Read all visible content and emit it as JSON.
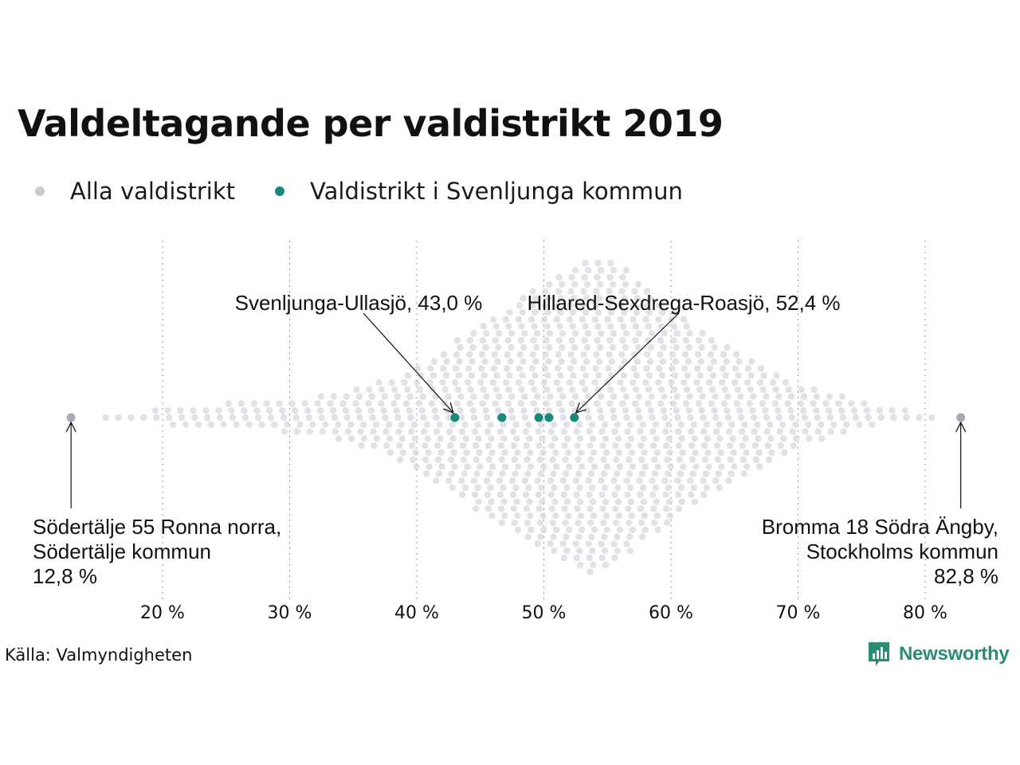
{
  "title": "Valdeltagande per valdistrikt 2019",
  "colors": {
    "all": "#c9c9d3",
    "highlight": "#17897a",
    "logo": "#2a8c72"
  },
  "legend": [
    {
      "label": "Alla valdistrikt",
      "color": "#c9c9d3"
    },
    {
      "label": "Valdistrikt i Svenljunga kommun",
      "color": "#17897a"
    }
  ],
  "chart_data": {
    "type": "scatter",
    "subtype": "beeswarm",
    "title": "Valdeltagande per valdistrikt 2019",
    "xlabel": "",
    "ylabel": "",
    "xlim": [
      12,
      83
    ],
    "x_ticks": [
      20,
      30,
      40,
      50,
      60,
      70,
      80
    ],
    "x_tick_labels": [
      "20 %",
      "30 %",
      "40 %",
      "50 %",
      "60 %",
      "70 %",
      "80 %"
    ],
    "grid": "vertical dotted",
    "series": [
      {
        "name": "Alla valdistrikt",
        "distribution": [
          {
            "x": 16,
            "count": 1
          },
          {
            "x": 17,
            "count": 1
          },
          {
            "x": 18,
            "count": 1
          },
          {
            "x": 19,
            "count": 2
          },
          {
            "x": 20,
            "count": 2
          },
          {
            "x": 21,
            "count": 3
          },
          {
            "x": 22,
            "count": 3
          },
          {
            "x": 23,
            "count": 3
          },
          {
            "x": 24,
            "count": 3
          },
          {
            "x": 25,
            "count": 4
          },
          {
            "x": 26,
            "count": 4
          },
          {
            "x": 27,
            "count": 4
          },
          {
            "x": 28,
            "count": 4
          },
          {
            "x": 29,
            "count": 4
          },
          {
            "x": 30,
            "count": 5
          },
          {
            "x": 31,
            "count": 5
          },
          {
            "x": 32,
            "count": 6
          },
          {
            "x": 33,
            "count": 6
          },
          {
            "x": 34,
            "count": 7
          },
          {
            "x": 35,
            "count": 8
          },
          {
            "x": 36,
            "count": 9
          },
          {
            "x": 37,
            "count": 10
          },
          {
            "x": 38,
            "count": 11
          },
          {
            "x": 39,
            "count": 13
          },
          {
            "x": 40,
            "count": 15
          },
          {
            "x": 41,
            "count": 17
          },
          {
            "x": 42,
            "count": 19
          },
          {
            "x": 43,
            "count": 22
          },
          {
            "x": 44,
            "count": 24
          },
          {
            "x": 45,
            "count": 27
          },
          {
            "x": 46,
            "count": 29
          },
          {
            "x": 47,
            "count": 31
          },
          {
            "x": 48,
            "count": 34
          },
          {
            "x": 49,
            "count": 36
          },
          {
            "x": 50,
            "count": 38
          },
          {
            "x": 51,
            "count": 40
          },
          {
            "x": 52,
            "count": 42
          },
          {
            "x": 53,
            "count": 44
          },
          {
            "x": 54,
            "count": 45
          },
          {
            "x": 55,
            "count": 44
          },
          {
            "x": 56,
            "count": 42
          },
          {
            "x": 57,
            "count": 39
          },
          {
            "x": 58,
            "count": 36
          },
          {
            "x": 59,
            "count": 33
          },
          {
            "x": 60,
            "count": 31
          },
          {
            "x": 61,
            "count": 28
          },
          {
            "x": 62,
            "count": 25
          },
          {
            "x": 63,
            "count": 23
          },
          {
            "x": 64,
            "count": 21
          },
          {
            "x": 65,
            "count": 19
          },
          {
            "x": 66,
            "count": 17
          },
          {
            "x": 67,
            "count": 15
          },
          {
            "x": 68,
            "count": 13
          },
          {
            "x": 69,
            "count": 11
          },
          {
            "x": 70,
            "count": 9
          },
          {
            "x": 71,
            "count": 8
          },
          {
            "x": 72,
            "count": 7
          },
          {
            "x": 73,
            "count": 6
          },
          {
            "x": 74,
            "count": 5
          },
          {
            "x": 75,
            "count": 4
          },
          {
            "x": 76,
            "count": 3
          },
          {
            "x": 77,
            "count": 2
          },
          {
            "x": 78,
            "count": 2
          },
          {
            "x": 79,
            "count": 1
          },
          {
            "x": 80,
            "count": 1
          },
          {
            "x": 81,
            "count": 1
          }
        ],
        "extremes": [
          12.8,
          82.8
        ]
      },
      {
        "name": "Valdistrikt i Svenljunga kommun",
        "values": [
          43.0,
          46.7,
          49.6,
          50.4,
          52.4
        ]
      }
    ],
    "annotations": [
      {
        "text_lines": [
          "Svenljunga-Ullasjö, 43,0 %"
        ],
        "x": 43.0
      },
      {
        "text_lines": [
          "Hillared-Sexdrega-Roasjö, 52,4 %"
        ],
        "x": 52.4
      },
      {
        "text_lines": [
          "Södertälje 55 Ronna norra,",
          "Södertälje kommun",
          "12,8 %"
        ],
        "x": 12.8
      },
      {
        "text_lines": [
          "Bromma 18 Södra Ängby,",
          "Stockholms kommun",
          "82,8 %"
        ],
        "x": 82.8
      }
    ]
  },
  "source": "Källa: Valmyndigheten",
  "logo": {
    "text": "Newsworthy",
    "icon": "bar-chart-speech-bubble-icon"
  }
}
